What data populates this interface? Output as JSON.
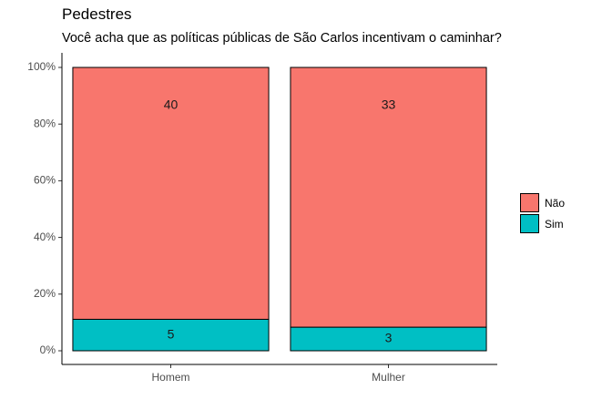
{
  "chart_data": {
    "type": "bar",
    "stacked": "percent",
    "title": "Pedestres",
    "subtitle": "Você acha que as políticas públicas de São Carlos incentivam o caminhar?",
    "categories": [
      "Homem",
      "Mulher"
    ],
    "series": [
      {
        "name": "Sim",
        "values": [
          5,
          3
        ],
        "color": "#00BFC4"
      },
      {
        "name": "Não",
        "values": [
          40,
          33
        ],
        "color": "#F8766D"
      }
    ],
    "yticks": [
      "0%",
      "20%",
      "40%",
      "60%",
      "80%",
      "100%"
    ],
    "ylim": [
      0,
      1
    ],
    "xlabel": "",
    "ylabel": "",
    "legend_position": "right",
    "grid": false
  },
  "legend": {
    "items": [
      {
        "label": "Não",
        "color": "#F8766D"
      },
      {
        "label": "Sim",
        "color": "#00BFC4"
      }
    ]
  }
}
